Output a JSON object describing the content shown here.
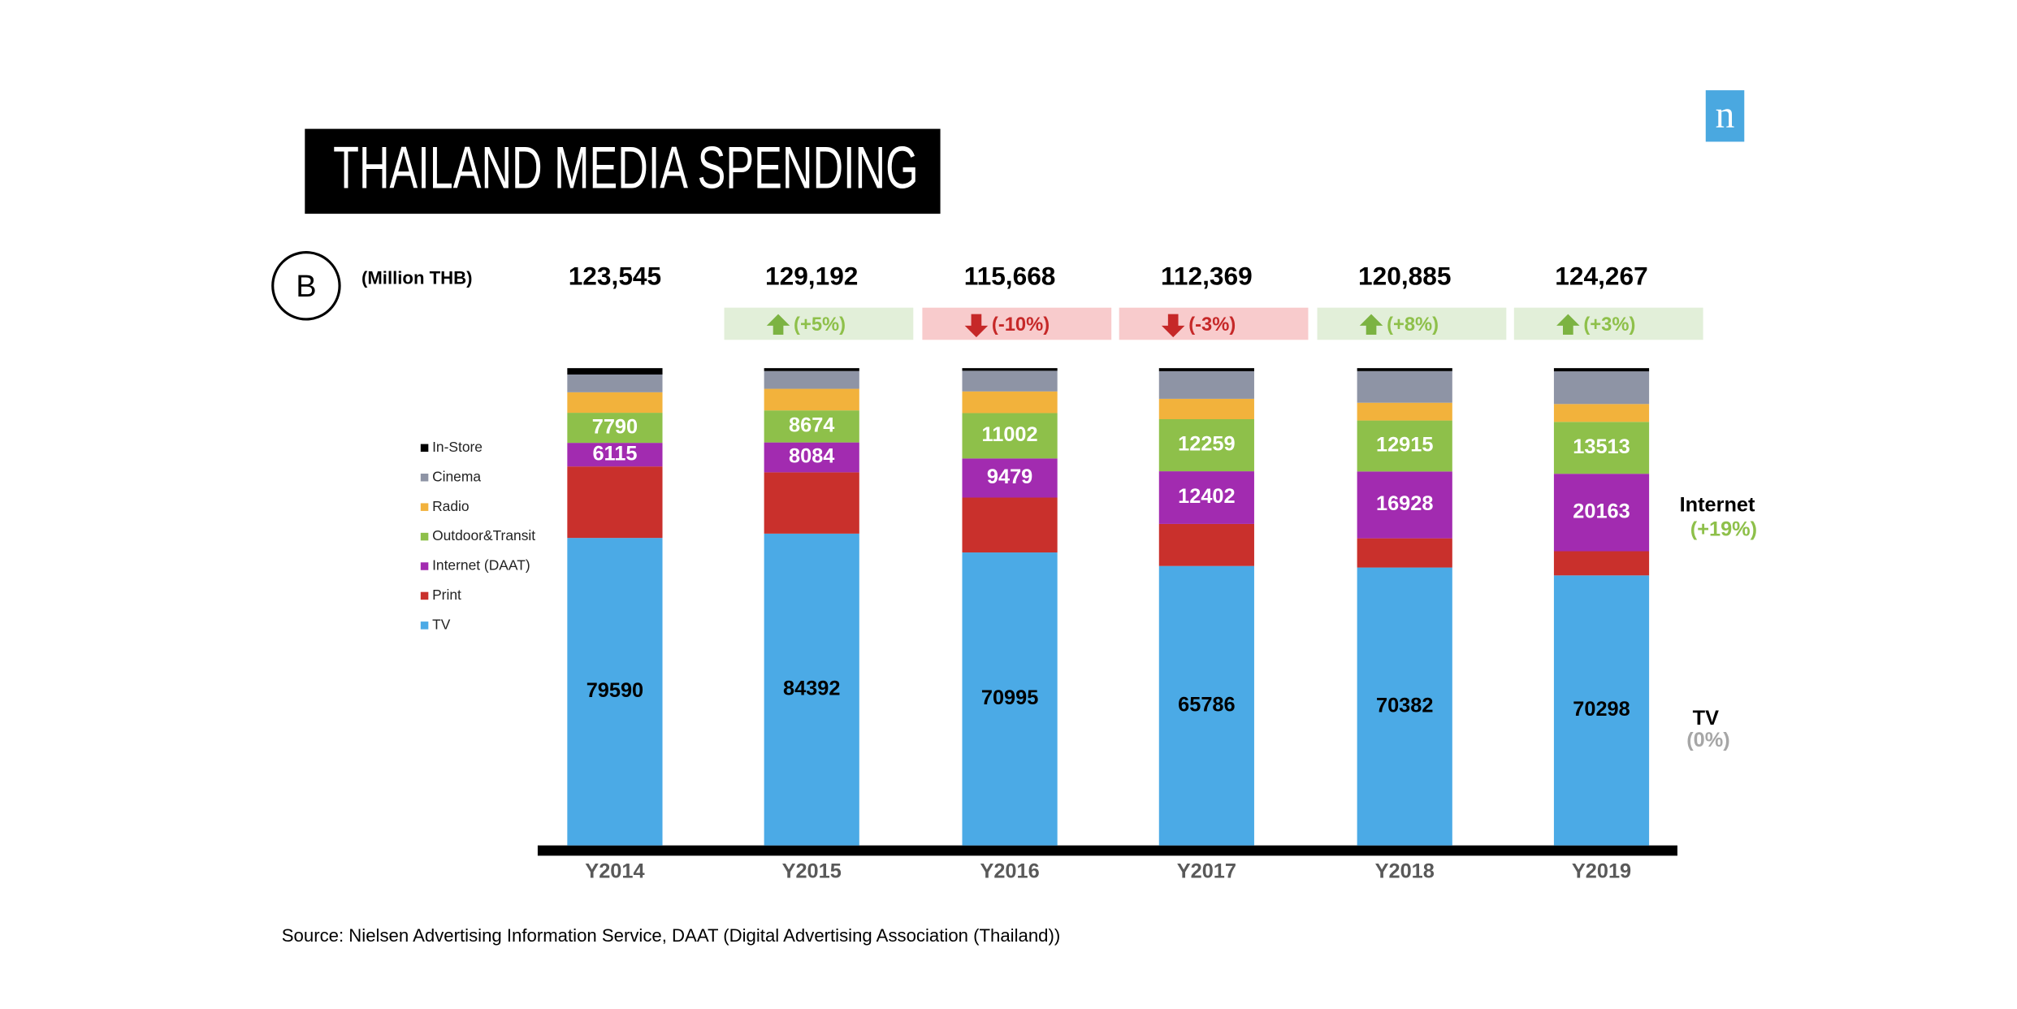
{
  "chart_data": {
    "type": "stacked-bar",
    "title": "THAILAND MEDIA SPENDING",
    "unit_label": "(Million THB)",
    "logo_badge": "B",
    "brand_logo": "n",
    "categories": [
      "Y2014",
      "Y2015",
      "Y2016",
      "Y2017",
      "Y2018",
      "Y2019"
    ],
    "totals": [
      123545,
      129192,
      115668,
      112369,
      120885,
      124267
    ],
    "changes": [
      null,
      {
        "value": 5,
        "label": "(+5%)"
      },
      {
        "value": -10,
        "label": "(-10%)"
      },
      {
        "value": -3,
        "label": "(-3%)"
      },
      {
        "value": 8,
        "label": "(+8%)"
      },
      {
        "value": 3,
        "label": "(+3%)"
      }
    ],
    "series": [
      {
        "name": "TV",
        "color": "#4baae6",
        "show_labels": true,
        "label_color": "#000000",
        "values": [
          79590,
          84392,
          70995,
          65786,
          70382,
          70298
        ]
      },
      {
        "name": "Print",
        "color": "#c9302c",
        "show_labels": false,
        "values": [
          18500,
          16600,
          13300,
          9900,
          7400,
          6300
        ]
      },
      {
        "name": "Internet (DAAT)",
        "color": "#a22bb0",
        "show_labels": true,
        "label_color": "#ffffff",
        "values": [
          6115,
          8084,
          9479,
          12402,
          16928,
          20163
        ]
      },
      {
        "name": "Outdoor&Transit",
        "color": "#8ec04a",
        "show_labels": true,
        "label_color": "#ffffff",
        "values": [
          7790,
          8674,
          11002,
          12259,
          12915,
          13513
        ]
      },
      {
        "name": "Radio",
        "color": "#f2b23c",
        "show_labels": false,
        "values": [
          5300,
          5850,
          5250,
          4800,
          4500,
          4650
        ]
      },
      {
        "name": "Cinema",
        "color": "#8e94a5",
        "show_labels": false,
        "values": [
          4600,
          4800,
          5000,
          6500,
          8000,
          8500
        ]
      },
      {
        "name": "In-Store",
        "color": "#000000",
        "show_labels": false,
        "values": [
          1650,
          792,
          642,
          722,
          760,
          843
        ]
      }
    ],
    "annotations": [
      {
        "name": "Internet",
        "change": "(+19%)",
        "change_color": "#8ec04a"
      },
      {
        "name": "TV",
        "change": "(0%)",
        "change_color": "#a6a6a6"
      }
    ],
    "source": "Source: Nielsen Advertising Information Service, DAAT (Digital Advertising Association (Thailand))"
  }
}
